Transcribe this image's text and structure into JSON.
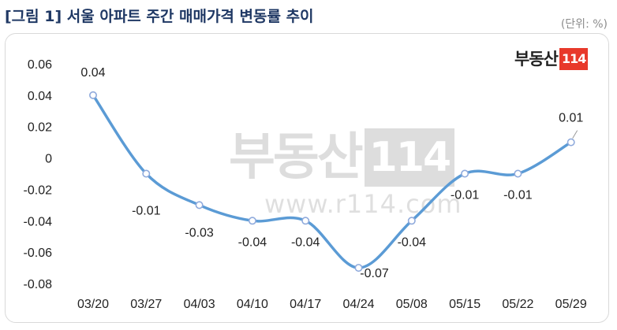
{
  "header": {
    "title": "[그림 1] 서울 아파트 주간 매매가격 변동률 추이",
    "unit": "(단위: %)"
  },
  "logo": {
    "text": "부동산",
    "number": "114"
  },
  "watermark": {
    "text": "부동산",
    "number": "114",
    "url": "www.r114.com"
  },
  "chart_data": {
    "type": "line",
    "title": "",
    "xlabel": "",
    "ylabel": "",
    "categories": [
      "03/20",
      "03/27",
      "04/03",
      "04/10",
      "04/17",
      "04/24",
      "05/08",
      "05/15",
      "05/22",
      "05/29"
    ],
    "series": [
      {
        "name": "",
        "values": [
          0.04,
          -0.01,
          -0.03,
          -0.04,
          -0.04,
          -0.07,
          -0.04,
          -0.01,
          -0.01,
          0.01
        ],
        "data_labels": [
          "0.04",
          "-0.01",
          "-0.03",
          "-0.04",
          "-0.04",
          "-0.07",
          "-0.04",
          "-0.01",
          "-0.01",
          "0.01"
        ]
      }
    ],
    "yticks": [
      0.06,
      0.04,
      0.02,
      0,
      -0.02,
      -0.04,
      -0.06,
      -0.08
    ],
    "ytick_labels": [
      "0.06",
      "0.04",
      "0.02",
      "0",
      "-0.02",
      "-0.04",
      "-0.06",
      "-0.08"
    ],
    "ylim": [
      -0.08,
      0.06
    ],
    "grid": false,
    "legend": "none",
    "line_color": "#5b9bd5",
    "marker_fill": "#ffffff"
  }
}
